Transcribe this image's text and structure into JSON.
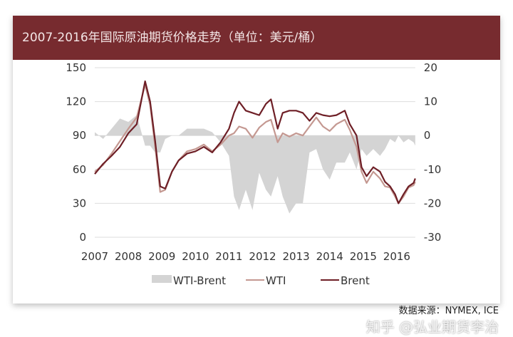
{
  "title": "2007-2016年国际原油期货价格走势（单位：美元/桶）",
  "source": "数据来源：NYMEX, ICE",
  "watermark": "知乎 @弘业期货李治",
  "chart_data": {
    "type": "line",
    "left_axis": {
      "ylim": [
        0,
        150
      ],
      "ticks": [
        0,
        30,
        60,
        90,
        120,
        150
      ]
    },
    "right_axis": {
      "ylim": [
        -30,
        20
      ],
      "ticks": [
        -30,
        -20,
        -10,
        0,
        10,
        20
      ]
    },
    "x_ticks": [
      "2007",
      "2008",
      "2009",
      "2010",
      "2011",
      "2012",
      "2013",
      "2014",
      "2015",
      "2016"
    ],
    "xlim": [
      2007,
      2016.55
    ],
    "x": [
      2007.0,
      2007.25,
      2007.5,
      2007.75,
      2008.0,
      2008.25,
      2008.5,
      2008.65,
      2008.8,
      2008.95,
      2009.1,
      2009.3,
      2009.5,
      2009.75,
      2010.0,
      2010.25,
      2010.5,
      2010.75,
      2011.0,
      2011.15,
      2011.3,
      2011.5,
      2011.7,
      2011.9,
      2012.1,
      2012.25,
      2012.45,
      2012.6,
      2012.8,
      2013.0,
      2013.2,
      2013.4,
      2013.6,
      2013.8,
      2014.0,
      2014.2,
      2014.45,
      2014.6,
      2014.8,
      2014.95,
      2015.1,
      2015.3,
      2015.5,
      2015.65,
      2015.8,
      2015.95,
      2016.05,
      2016.2,
      2016.35,
      2016.5,
      2016.55
    ],
    "series": [
      {
        "name": "Brent",
        "axis": "left",
        "color": "#6e1f26",
        "values": [
          56,
          65,
          72,
          80,
          92,
          100,
          138,
          120,
          85,
          45,
          43,
          58,
          68,
          74,
          76,
          80,
          75,
          84,
          96,
          110,
          120,
          112,
          110,
          108,
          118,
          122,
          96,
          110,
          112,
          112,
          110,
          103,
          110,
          108,
          107,
          108,
          112,
          100,
          90,
          62,
          54,
          62,
          58,
          49,
          45,
          38,
          30,
          38,
          45,
          48,
          52
        ]
      },
      {
        "name": "WTI",
        "axis": "left",
        "color": "#c49891",
        "values": [
          58,
          64,
          74,
          85,
          96,
          106,
          135,
          117,
          80,
          40,
          42,
          58,
          68,
          76,
          78,
          82,
          76,
          82,
          90,
          92,
          98,
          96,
          88,
          97,
          102,
          104,
          84,
          92,
          89,
          92,
          90,
          98,
          106,
          98,
          94,
          100,
          104,
          95,
          80,
          58,
          48,
          58,
          52,
          45,
          44,
          36,
          30,
          36,
          44,
          46,
          49
        ]
      },
      {
        "name": "WTI-Brent",
        "axis": "right",
        "color": "#d4d4d4",
        "type": "area",
        "values": [
          1,
          -1,
          2,
          5,
          4,
          6,
          -3,
          -3,
          -5,
          -5,
          -1,
          0,
          0,
          2,
          2,
          2,
          1,
          -2,
          -6,
          -18,
          -22,
          -16,
          -22,
          -11,
          -16,
          -18,
          -12,
          -18,
          -23,
          -20,
          -20,
          -5,
          -4,
          -10,
          -13,
          -8,
          -8,
          -5,
          -10,
          -4,
          -6,
          -4,
          -6,
          -4,
          -1,
          -2,
          0,
          -2,
          -1,
          -2,
          -3
        ]
      }
    ],
    "legend": [
      "WTI-Brent",
      "WTI",
      "Brent"
    ],
    "legend_position": "bottom",
    "grid": "horizontal"
  }
}
